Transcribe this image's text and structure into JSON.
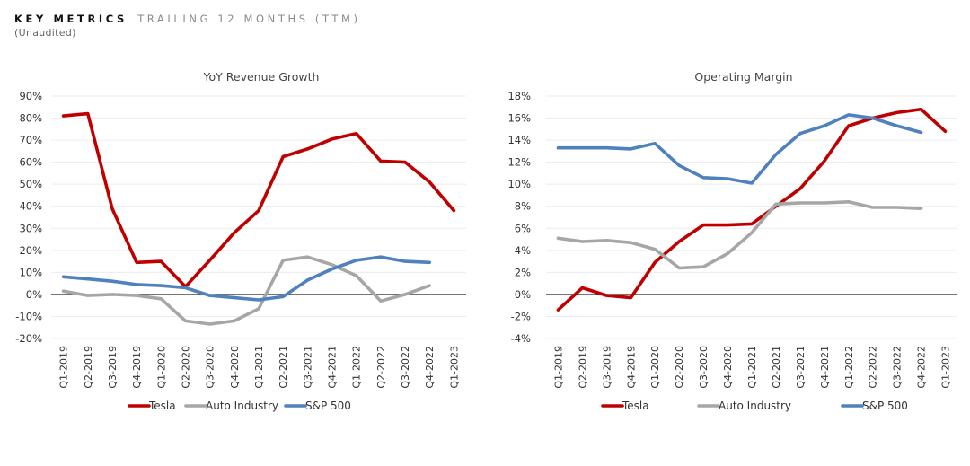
{
  "header": {
    "title_strong": "KEY METRICS",
    "title_light": "TRAILING 12 MONTHS (TTM)",
    "subtitle": "(Unaudited)"
  },
  "chart_data": [
    {
      "type": "line",
      "title": "YoY Revenue Growth",
      "xlabel": "",
      "ylabel": "",
      "categories": [
        "Q1-2019",
        "Q2-2019",
        "Q3-2019",
        "Q4-2019",
        "Q1-2020",
        "Q2-2020",
        "Q3-2020",
        "Q4-2020",
        "Q1-2021",
        "Q2-2021",
        "Q3-2021",
        "Q4-2021",
        "Q1-2022",
        "Q2-2022",
        "Q3-2022",
        "Q4-2022",
        "Q1-2023"
      ],
      "ylim": [
        -20,
        90
      ],
      "yticks": [
        -20,
        -10,
        0,
        10,
        20,
        30,
        40,
        50,
        60,
        70,
        80,
        90
      ],
      "ytick_labels": [
        "-20%",
        "-10%",
        "0%",
        "10%",
        "20%",
        "30%",
        "40%",
        "50%",
        "60%",
        "70%",
        "80%",
        "90%"
      ],
      "legend_position": "bottom",
      "grid": true,
      "series": [
        {
          "name": "Tesla",
          "color": "#c00000",
          "values": [
            81,
            82,
            39,
            14.5,
            15,
            3.5,
            15.5,
            28,
            38,
            62.5,
            66,
            70.5,
            73,
            60.5,
            60,
            51,
            38
          ]
        },
        {
          "name": "Auto Industry",
          "color": "#a6a6a6",
          "values": [
            1.5,
            -0.5,
            0,
            -0.5,
            -2,
            -12,
            -13.5,
            -12,
            -6.5,
            15.5,
            17,
            13.5,
            8.5,
            -3,
            0,
            4,
            null
          ]
        },
        {
          "name": "S&P 500",
          "color": "#4f81bd",
          "values": [
            8,
            7,
            6,
            4.5,
            4,
            3,
            -0.5,
            -1.5,
            -2.5,
            -1,
            6.5,
            11.5,
            15.5,
            17,
            15,
            14.5,
            null
          ]
        }
      ]
    },
    {
      "type": "line",
      "title": "Operating Margin",
      "xlabel": "",
      "ylabel": "",
      "categories": [
        "Q1-2019",
        "Q2-2019",
        "Q3-2019",
        "Q4-2019",
        "Q1-2020",
        "Q2-2020",
        "Q3-2020",
        "Q4-2020",
        "Q1-2021",
        "Q2-2021",
        "Q3-2021",
        "Q4-2021",
        "Q1-2022",
        "Q2-2022",
        "Q3-2022",
        "Q4-2022",
        "Q1-2023"
      ],
      "ylim": [
        -4,
        18
      ],
      "yticks": [
        -4,
        -2,
        0,
        2,
        4,
        6,
        8,
        10,
        12,
        14,
        16,
        18
      ],
      "ytick_labels": [
        "-4%",
        "-2%",
        "0%",
        "2%",
        "4%",
        "6%",
        "8%",
        "10%",
        "12%",
        "14%",
        "16%",
        "18%"
      ],
      "legend_position": "bottom",
      "grid": true,
      "series": [
        {
          "name": "Tesla",
          "color": "#c00000",
          "values": [
            -1.4,
            0.6,
            -0.1,
            -0.3,
            2.9,
            4.8,
            6.3,
            6.3,
            6.4,
            8.0,
            9.6,
            12.1,
            15.3,
            16.0,
            16.5,
            16.8,
            14.8
          ]
        },
        {
          "name": "Auto Industry",
          "color": "#a6a6a6",
          "values": [
            5.1,
            4.8,
            4.9,
            4.7,
            4.1,
            2.4,
            2.5,
            3.7,
            5.6,
            8.2,
            8.3,
            8.3,
            8.4,
            7.9,
            7.9,
            7.8,
            null
          ]
        },
        {
          "name": "S&P 500",
          "color": "#4f81bd",
          "values": [
            13.3,
            13.3,
            13.3,
            13.2,
            13.7,
            11.7,
            10.6,
            10.5,
            10.1,
            12.7,
            14.6,
            15.3,
            16.3,
            16.0,
            15.3,
            14.7,
            null
          ]
        }
      ]
    }
  ]
}
